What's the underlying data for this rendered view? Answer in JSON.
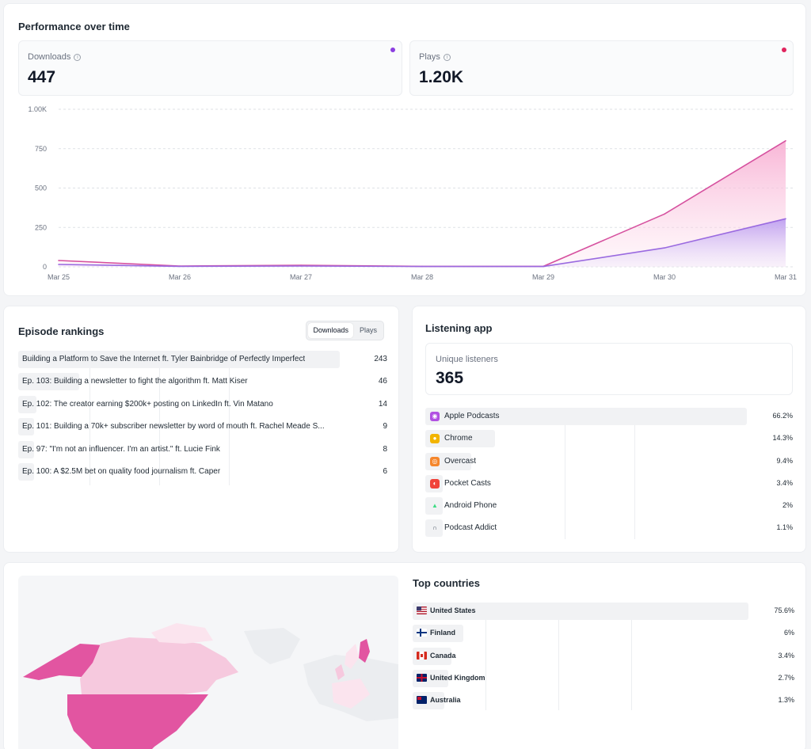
{
  "performance": {
    "title": "Performance over time",
    "stats": [
      {
        "label": "Downloads",
        "value": "447",
        "color": "#8b3fe0"
      },
      {
        "label": "Plays",
        "value": "1.20K",
        "color": "#e0245e"
      }
    ]
  },
  "chart_data": {
    "type": "area",
    "title": "",
    "xlabel": "",
    "ylabel": "",
    "x": [
      "Mar 25",
      "Mar 26",
      "Mar 27",
      "Mar 28",
      "Mar 29",
      "Mar 30",
      "Mar 31"
    ],
    "y_ticks": [
      "1.00K",
      "750",
      "500",
      "250",
      "0"
    ],
    "y_tick_values": [
      1000,
      750,
      500,
      250,
      0
    ],
    "ylim": [
      0,
      1000
    ],
    "grid": true,
    "series": [
      {
        "name": "Plays",
        "values": [
          40,
          5,
          10,
          3,
          3,
          335,
          800
        ],
        "color": "#d6519f"
      },
      {
        "name": "Downloads",
        "values": [
          15,
          3,
          5,
          2,
          2,
          120,
          305
        ],
        "color": "#9a6ae0"
      }
    ]
  },
  "rankings": {
    "title": "Episode rankings",
    "toggle": [
      "Downloads",
      "Plays"
    ],
    "items": [
      {
        "title": "Building a Platform to Save the Internet ft. Tyler Bainbridge of Perfectly Imperfect",
        "count": 243
      },
      {
        "title": "Ep. 103: Building a newsletter to fight the algorithm ft. Matt Kiser",
        "count": 46
      },
      {
        "title": "Ep. 102: The creator earning $200k+ posting on LinkedIn ft. Vin Matano",
        "count": 14
      },
      {
        "title": "Ep. 101: Building a 70k+ subscriber newsletter by word of mouth ft. Rachel Meade S...",
        "count": 9
      },
      {
        "title": "Ep. 97: \"I'm not an influencer. I'm an artist.\" ft. Lucie Fink",
        "count": 8
      },
      {
        "title": "Ep. 100: A $2.5M bet on quality food journalism ft. Caper",
        "count": 6
      }
    ]
  },
  "apps": {
    "title": "Listening app",
    "unique_label": "Unique listeners",
    "unique_value": "365",
    "items": [
      {
        "name": "Apple Podcasts",
        "pct": "66.2%",
        "share": 66.2,
        "icon": "podcasts-icon",
        "color": "#b150e2"
      },
      {
        "name": "Chrome",
        "pct": "14.3%",
        "share": 14.3,
        "icon": "chrome-icon",
        "color": "#f2b400"
      },
      {
        "name": "Overcast",
        "pct": "9.4%",
        "share": 9.4,
        "icon": "overcast-icon",
        "color": "#f5862c"
      },
      {
        "name": "Pocket Casts",
        "pct": "3.4%",
        "share": 3.4,
        "icon": "pocket-casts-icon",
        "color": "#f0433a"
      },
      {
        "name": "Android Phone",
        "pct": "2%",
        "share": 2,
        "icon": "android-icon",
        "color": "#3ddc84"
      },
      {
        "name": "Podcast Addict",
        "pct": "1.1%",
        "share": 1.1,
        "icon": "headphones-icon",
        "color": "#4b5563"
      }
    ]
  },
  "countries": {
    "title": "Top countries",
    "items": [
      {
        "name": "United States",
        "pct": "75.6%",
        "share": 75.6,
        "flag": "us-flag"
      },
      {
        "name": "Finland",
        "pct": "6%",
        "share": 6,
        "flag": "fi-flag"
      },
      {
        "name": "Canada",
        "pct": "3.4%",
        "share": 3.4,
        "flag": "ca-flag"
      },
      {
        "name": "United Kingdom",
        "pct": "2.7%",
        "share": 2.7,
        "flag": "uk-flag"
      },
      {
        "name": "Australia",
        "pct": "1.3%",
        "share": 1.3,
        "flag": "au-flag"
      }
    ]
  },
  "colors": {
    "map_strong": "#e255a1",
    "map_light": "#f6c9de",
    "map_faint": "#fbe4ee",
    "land": "#ebedf0"
  }
}
